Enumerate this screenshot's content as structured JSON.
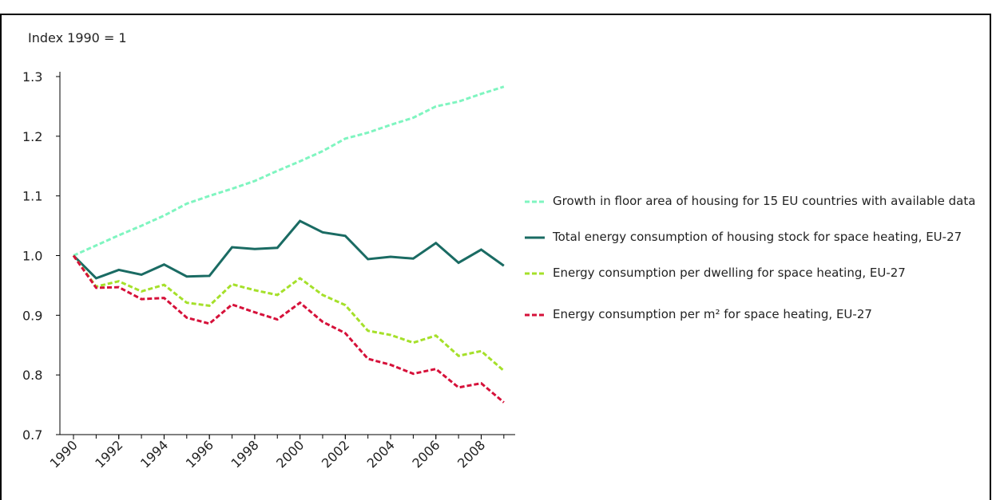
{
  "chart_data": {
    "type": "line",
    "y_label": "Index 1990 = 1",
    "x": [
      1990,
      1991,
      1992,
      1993,
      1994,
      1995,
      1996,
      1997,
      1998,
      1999,
      2000,
      2001,
      2002,
      2003,
      2004,
      2005,
      2006,
      2007,
      2008,
      2009
    ],
    "xlim": [
      1989.4,
      2009.5
    ],
    "xticks": [
      1990,
      1992,
      1994,
      1996,
      1998,
      2000,
      2002,
      2004,
      2006,
      2008
    ],
    "ylim": [
      0.7,
      1.3
    ],
    "yticks": [
      0.7,
      0.8,
      0.9,
      {
        "value": 1,
        "label": "1.0"
      },
      1.1,
      1.2,
      1.3
    ],
    "series": [
      {
        "name": "Growth in floor area of housing for 15 EU countries with available data",
        "color": "#7ff5c0",
        "dashed": true,
        "values": [
          1.0,
          1.017,
          1.034,
          1.05,
          1.067,
          1.087,
          1.1,
          1.112,
          1.125,
          1.142,
          1.158,
          1.175,
          1.196,
          1.206,
          1.219,
          1.231,
          1.25,
          1.258,
          1.271,
          1.283
        ]
      },
      {
        "name": "Total energy consumption of housing stock for space heating, EU-27",
        "color": "#1a6b63",
        "dashed": false,
        "values": [
          1.0,
          0.962,
          0.976,
          0.968,
          0.985,
          0.965,
          0.966,
          1.014,
          1.011,
          1.013,
          1.058,
          1.039,
          1.033,
          0.994,
          0.998,
          0.995,
          1.021,
          0.988,
          1.01,
          0.983
        ]
      },
      {
        "name": "Energy consumption per dwelling for space heating, EU-27",
        "color": "#a5e02a",
        "dashed": true,
        "values": [
          1.0,
          0.948,
          0.957,
          0.94,
          0.951,
          0.921,
          0.916,
          0.952,
          0.942,
          0.934,
          0.962,
          0.934,
          0.917,
          0.874,
          0.867,
          0.854,
          0.866,
          0.832,
          0.84,
          0.807
        ]
      },
      {
        "name": "Energy consumption per m² for space heating, EU-27",
        "color": "#d6113a",
        "dashed": true,
        "values": [
          1.0,
          0.946,
          0.947,
          0.927,
          0.929,
          0.896,
          0.886,
          0.918,
          0.905,
          0.893,
          0.921,
          0.889,
          0.87,
          0.827,
          0.817,
          0.802,
          0.81,
          0.779,
          0.786,
          0.754
        ]
      }
    ]
  }
}
